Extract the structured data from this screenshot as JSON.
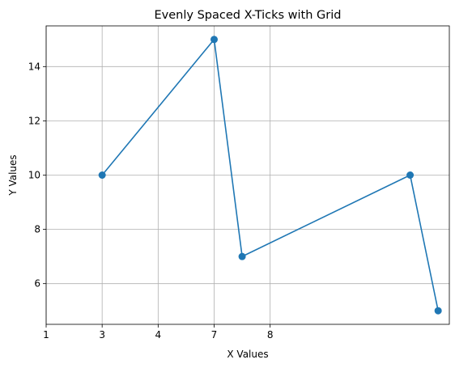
{
  "chart_data": {
    "type": "line",
    "title": "Evenly Spaced X-Ticks with Grid",
    "xlabel": "X Values",
    "ylabel": "Y Values",
    "x": [
      3,
      7,
      8,
      14,
      15
    ],
    "y": [
      10,
      15,
      7,
      10,
      5
    ],
    "xlim": [
      1,
      15.4
    ],
    "ylim": [
      4.5,
      15.5
    ],
    "x_ticks": [
      1,
      3,
      4,
      7,
      8
    ],
    "x_tick_positions": [
      1,
      3,
      5,
      7,
      9
    ],
    "y_ticks": [
      6,
      8,
      10,
      12,
      14
    ],
    "grid": true,
    "legend": null,
    "series": [
      {
        "color": "#1f77b4",
        "marker": "circle"
      }
    ]
  }
}
